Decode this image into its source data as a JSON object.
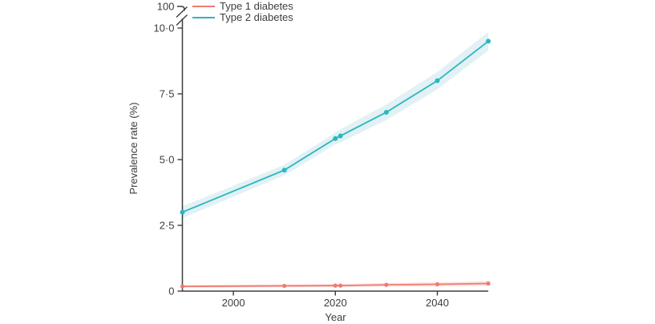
{
  "legend": {
    "items": [
      {
        "label": "Type 1 diabetes",
        "color": "#ef7b71"
      },
      {
        "label": "Type 2 diabetes",
        "color": "#2bb6c3"
      }
    ]
  },
  "chart_data": {
    "type": "line",
    "title": "",
    "xlabel": "Year",
    "ylabel": "Prevalence rate (%)",
    "x": [
      1990,
      2010,
      2020,
      2021,
      2030,
      2040,
      2050
    ],
    "series": [
      {
        "name": "Type 1 diabetes",
        "color": "#ef7b71",
        "band_color": "#fbe4e1",
        "values": [
          0.18,
          0.2,
          0.21,
          0.21,
          0.24,
          0.26,
          0.29
        ],
        "band_halfwidth": [
          0.05,
          0.05,
          0.06,
          0.06,
          0.07,
          0.08,
          0.09
        ],
        "point_radius": 2.6
      },
      {
        "name": "Type 2 diabetes",
        "color": "#2bb6c3",
        "band_color": "#e2f1f3",
        "values": [
          3.0,
          4.6,
          5.8,
          5.9,
          6.8,
          8.0,
          9.5
        ],
        "band_halfwidth": [
          0.22,
          0.2,
          0.22,
          0.25,
          0.3,
          0.33,
          0.35
        ],
        "point_radius": 3
      }
    ],
    "x_ticks": [
      {
        "label": "2000",
        "value": 2000
      },
      {
        "label": "2020",
        "value": 2020
      },
      {
        "label": "2040",
        "value": 2040
      }
    ],
    "y_ticks": [
      {
        "label": "0",
        "value": 0
      },
      {
        "label": "2·5",
        "value": 2.5
      },
      {
        "label": "5·0",
        "value": 5
      },
      {
        "label": "7·5",
        "value": 7.5
      },
      {
        "label": "10·0",
        "value": 10
      }
    ],
    "y_axis_break": {
      "enabled": true,
      "upper_label": "100"
    },
    "xlim": [
      1990,
      2050
    ],
    "ylim": [
      0,
      10
    ],
    "grid": false,
    "legend_position": "top-left-inside",
    "colors": {
      "axis": "#3d3d3d",
      "text": "#3d3d3d",
      "background": "#ffffff"
    }
  }
}
